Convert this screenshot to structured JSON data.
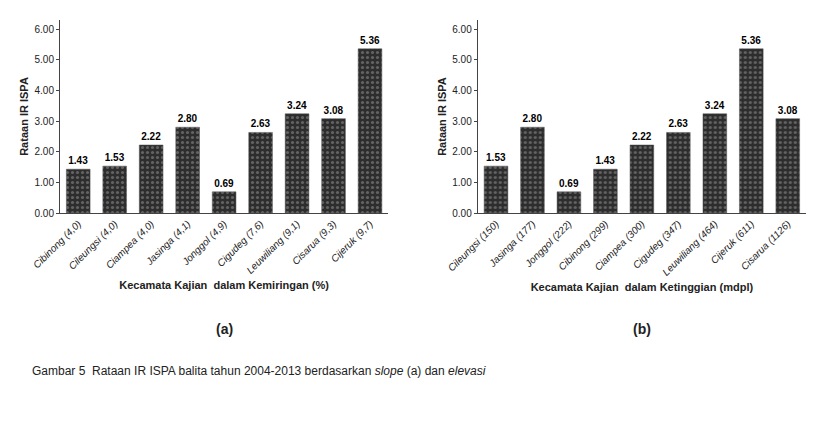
{
  "chart_data": [
    {
      "type": "bar",
      "subtitle": "(a)",
      "xlabel": "Kecamata Kajian  dalam Kemiringan (%)",
      "ylabel": "Rataan IR ISPA",
      "categories": [
        "Cibinong (4,0)",
        "Cileungsi (4,0)",
        "Ciampea (4,0)",
        "Jasinga (4,1)",
        "Jonggol (4,9)",
        "Cigudeg (7,6)",
        "Leuwiliang (9,1)",
        "Cisarua (9,3)",
        "Cijeruk (9,7)"
      ],
      "values": [
        1.43,
        1.53,
        2.22,
        2.8,
        0.69,
        2.63,
        3.24,
        3.08,
        5.36
      ],
      "value_labels": [
        "1.43",
        "1.53",
        "2.22",
        "2.80",
        "0.69",
        "2.63",
        "3.24",
        "3.08",
        "5.36"
      ],
      "data_labels": true,
      "color": "#2d2d2d",
      "ylim": [
        0,
        6.3
      ],
      "yticks": [
        {
          "value": 0,
          "label": "0.00"
        },
        {
          "value": 1,
          "label": "1.00"
        },
        {
          "value": 2,
          "label": "2.00"
        },
        {
          "value": 3,
          "label": "3.00"
        },
        {
          "value": 4,
          "label": "4.00"
        },
        {
          "value": 5,
          "label": "5.00"
        },
        {
          "value": 6,
          "label": "6.00"
        }
      ],
      "grid": false
    },
    {
      "type": "bar",
      "subtitle": "(b)",
      "xlabel": "Kecamata Kajian  dalam Ketinggian (mdpl)",
      "ylabel": "Rataan IR ISPA",
      "categories": [
        "Cileungsi (150)",
        "Jasinga (177)",
        "Jonggol (222)",
        "Cibinong (299)",
        "Ciampea (300)",
        "Cigudeg (347)",
        "Leuwiliang (464)",
        "Cijeruk (611)",
        "Cisarua (1126)"
      ],
      "values": [
        1.53,
        2.8,
        0.69,
        1.43,
        2.22,
        2.63,
        3.24,
        5.36,
        3.08
      ],
      "value_labels": [
        "1.53",
        "2.80",
        "0.69",
        "1.43",
        "2.22",
        "2.63",
        "3.24",
        "5.36",
        "3.08"
      ],
      "data_labels": true,
      "color": "#2d2d2d",
      "ylim": [
        0,
        6.3
      ],
      "yticks": [
        {
          "value": 0,
          "label": "0.00"
        },
        {
          "value": 1,
          "label": "1.00"
        },
        {
          "value": 2,
          "label": "2.00"
        },
        {
          "value": 3,
          "label": "3.00"
        },
        {
          "value": 4,
          "label": "4.00"
        },
        {
          "value": 5,
          "label": "5.00"
        },
        {
          "value": 6,
          "label": "6.00"
        }
      ],
      "grid": false
    }
  ],
  "caption": [
    "Gambar 5  Rataan IR ISPA balita tahun 2004-2013 berdasarkan ",
    "slope",
    " (a) dan ",
    "elevasi"
  ]
}
